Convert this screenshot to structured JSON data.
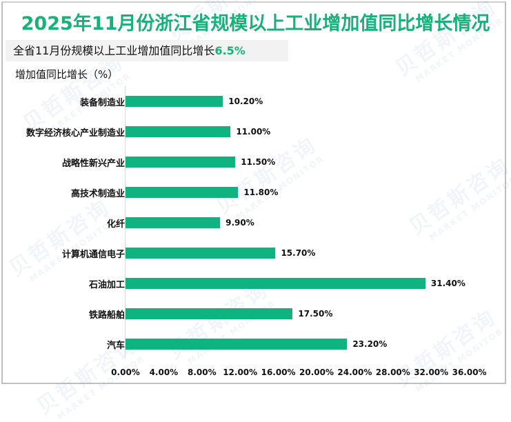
{
  "title": "2025年11月份浙江省规模以上工业增加值同比增长情况",
  "summary": {
    "text": "全省11月份规模以上工业增加值同比增长",
    "value": "6.5%"
  },
  "watermark": {
    "cn": "贝哲斯咨询",
    "en": "MARKET MONITOR"
  },
  "colors": {
    "accent": "#17b27a",
    "bar": "#0fb37f",
    "summary_bg": "#f2f2f2",
    "border": "#bfbfbf"
  },
  "chart_data": {
    "type": "bar",
    "orientation": "horizontal",
    "title": "2025年11月份浙江省规模以上工业增加值同比增长情况",
    "ylabel": "增加值同比增长（%）",
    "xlabel": "",
    "categories": [
      "装备制造业",
      "数字经济核心产业制造业",
      "战略性新兴产业",
      "高技术制造业",
      "化纤",
      "计算机通信电子",
      "石油加工",
      "铁路船舶",
      "汽车"
    ],
    "values": [
      10.2,
      11.0,
      11.5,
      11.8,
      9.9,
      15.7,
      31.4,
      17.5,
      23.2
    ],
    "value_labels": [
      "10.20%",
      "11.00%",
      "11.50%",
      "11.80%",
      "9.90%",
      "15.70%",
      "31.40%",
      "17.50%",
      "23.20%"
    ],
    "xlim": [
      0,
      36
    ],
    "xticks": [
      "0.00%",
      "4.00%",
      "8.00%",
      "12.00%",
      "16.00%",
      "20.00%",
      "24.00%",
      "28.00%",
      "32.00%",
      "36.00%"
    ],
    "grid": false,
    "legend": "none"
  }
}
